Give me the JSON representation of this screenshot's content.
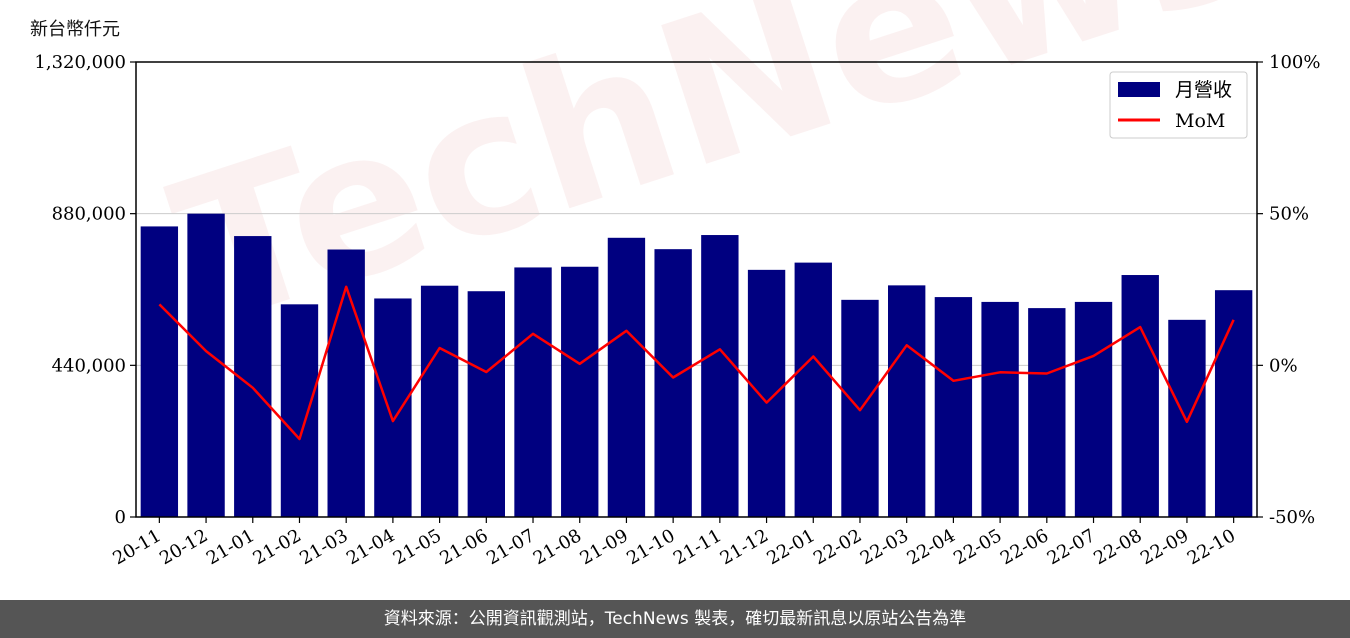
{
  "unit_label": "新台幣仟元",
  "footer_text": "資料來源：公開資訊觀測站，TechNews 製表，確切最新訊息以原站公告為準",
  "watermark_text": "TechNews",
  "colors": {
    "bar": "#000080",
    "line": "#ff0000",
    "grid": "#cccccc",
    "footer_bg": "#555555"
  },
  "chart_data": {
    "type": "bar",
    "categories": [
      "20-11",
      "20-12",
      "21-01",
      "21-02",
      "21-03",
      "21-04",
      "21-05",
      "21-06",
      "21-07",
      "21-08",
      "21-09",
      "21-10",
      "21-11",
      "21-12",
      "22-01",
      "22-02",
      "22-03",
      "22-04",
      "22-05",
      "22-06",
      "22-07",
      "22-08",
      "22-09",
      "22-10"
    ],
    "series": [
      {
        "name": "月營收",
        "axis": "left",
        "type": "bar",
        "values": [
          843000,
          880000,
          815000,
          617000,
          776000,
          634000,
          671000,
          655000,
          724000,
          726000,
          810000,
          777000,
          818000,
          717000,
          738000,
          630000,
          672000,
          638000,
          624000,
          606000,
          624000,
          702000,
          572000,
          658000
        ]
      },
      {
        "name": "MoM",
        "axis": "right",
        "type": "line",
        "values": [
          20.1,
          4.7,
          -7.4,
          -24.3,
          25.9,
          -18.4,
          5.7,
          -2.2,
          10.4,
          0.5,
          11.4,
          -4.0,
          5.3,
          -12.3,
          2.9,
          -14.8,
          6.6,
          -5.1,
          -2.3,
          -2.7,
          3.1,
          12.6,
          -18.6,
          15.0
        ]
      }
    ],
    "left_axis": {
      "ylim": [
        0,
        1320000
      ],
      "ticks": [
        0,
        440000,
        880000,
        1320000
      ],
      "tick_labels": [
        "0",
        "440,000",
        "880,000",
        "1,320,000"
      ]
    },
    "right_axis": {
      "ylim": [
        -50,
        100
      ],
      "ticks": [
        -50,
        0,
        50,
        100
      ],
      "tick_labels": [
        "-50%",
        "0%",
        "50%",
        "100%"
      ]
    },
    "grid": true,
    "legend": {
      "placement": "top-right",
      "entries": [
        "月營收",
        "MoM"
      ]
    }
  }
}
